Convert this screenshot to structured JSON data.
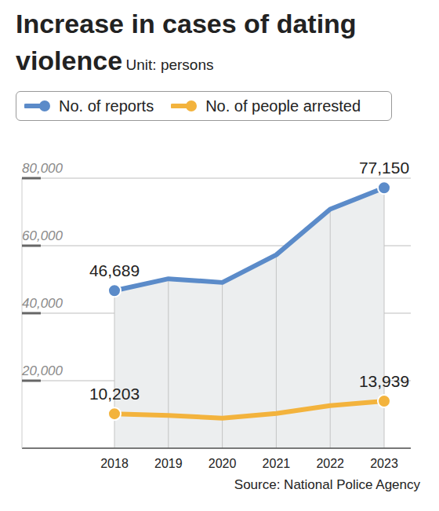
{
  "chart_data": {
    "type": "line",
    "title": "Increase in cases of dating violence",
    "subtitle": "Unit: persons",
    "source": "Source: National Police Agency",
    "categories": [
      "2018",
      "2019",
      "2020",
      "2021",
      "2022",
      "2023"
    ],
    "series": [
      {
        "name": "No. of reports",
        "type": "area",
        "color": "#5b8bc9",
        "marker": "circle",
        "values": [
          46689,
          50200,
          49100,
          57300,
          70800,
          77150
        ],
        "value_labels": [
          "46,689",
          null,
          null,
          null,
          null,
          "77,150"
        ]
      },
      {
        "name": "No. of people arrested",
        "type": "line",
        "color": "#f3b33d",
        "marker": "circle",
        "values": [
          10203,
          9700,
          8900,
          10300,
          12600,
          13939
        ],
        "value_labels": [
          "10,203",
          null,
          null,
          null,
          null,
          "13,939"
        ]
      }
    ],
    "ylim": [
      0,
      80000
    ],
    "yticks": [
      {
        "value": 20000,
        "label": "20,000"
      },
      {
        "value": 40000,
        "label": "40,000"
      },
      {
        "value": 60000,
        "label": "60,000"
      },
      {
        "value": 80000,
        "label": "80,000"
      }
    ],
    "grid": true,
    "data_labels": true,
    "legend": "top"
  }
}
